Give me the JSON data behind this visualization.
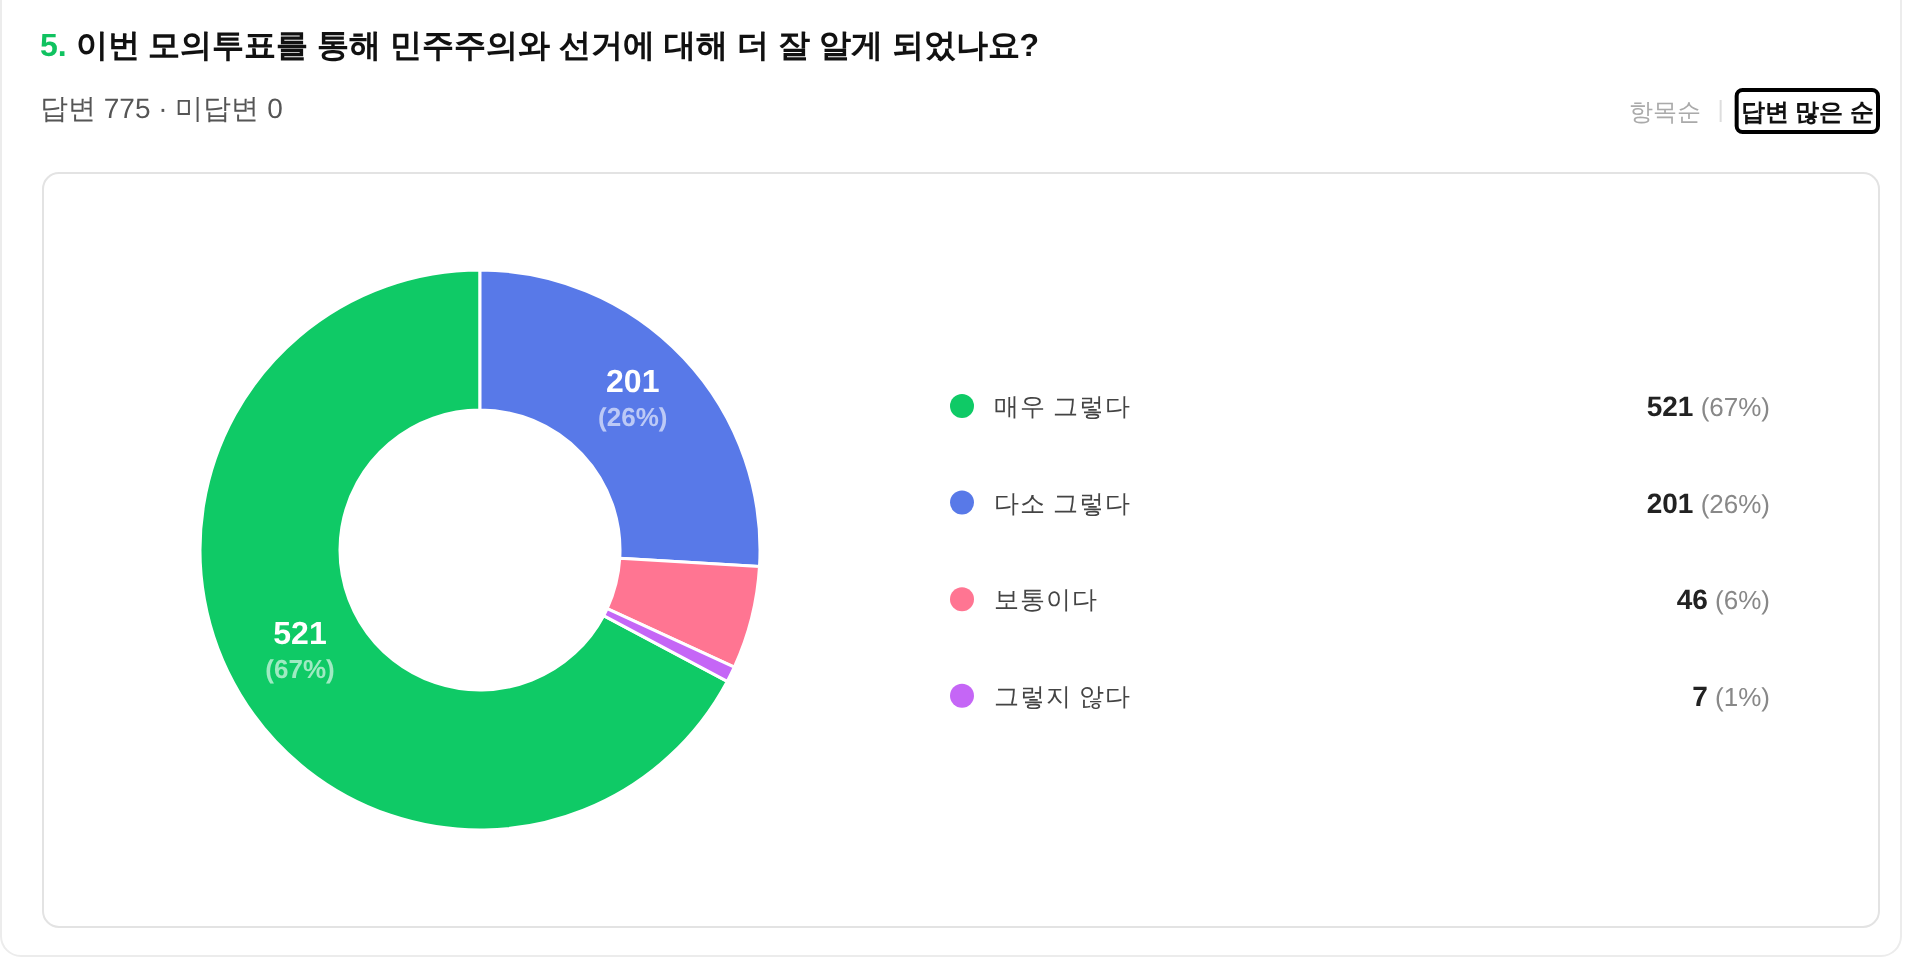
{
  "chart_data": {
    "type": "donut",
    "title": "5. 이번 모의투표를 통해 민주주의와 선거에 대해 더 잘 알게 되었나요?",
    "subtitle": "답변 775 · 미답변 0",
    "categories": [
      "매우 그렇다",
      "다소 그렇다",
      "보통이다",
      "그렇지 않다"
    ],
    "values": [
      521,
      201,
      46,
      7
    ],
    "colors": [
      "#0fca66",
      "#5879e8",
      "#ff7592",
      "#c566f6"
    ],
    "value_labels": [
      "521 (67%)",
      "201 (26%)",
      "46 (6%)",
      "7 (1%)"
    ],
    "legend": "right",
    "annotations": [
      "항목순",
      "답변 많은 순"
    ]
  }
}
